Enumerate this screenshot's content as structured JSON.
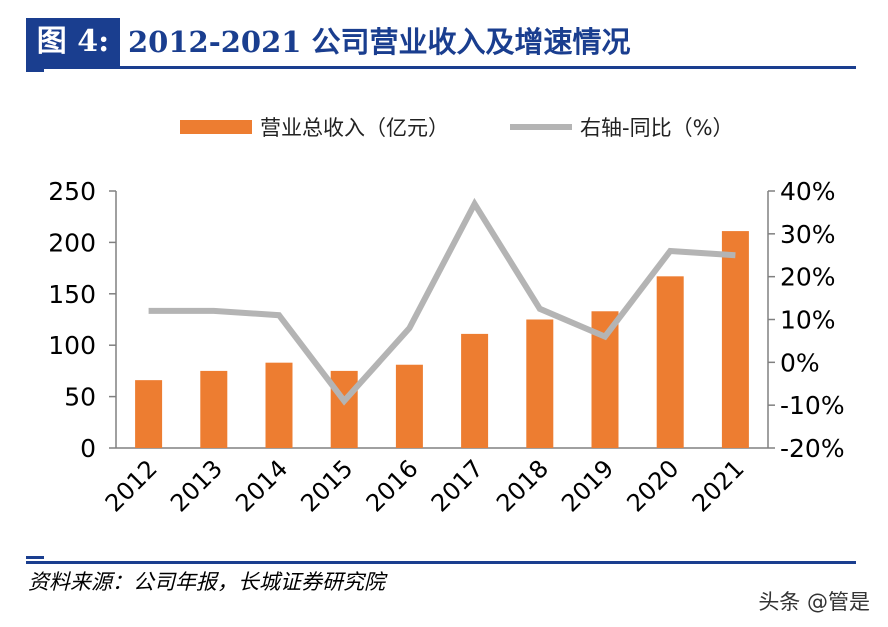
{
  "figure": {
    "tag": "图 4:",
    "title": "2012-2021 公司营业收入及增速情况",
    "source": "资料来源：公司年报，长城证券研究院",
    "watermark": "头条 @管是"
  },
  "colors": {
    "bar": "#ed7d31",
    "line": "#b4b4b4",
    "title": "#1a3e8f",
    "axis": "#808080"
  },
  "chart_data": {
    "type": "bar",
    "categories": [
      "2012",
      "2013",
      "2014",
      "2015",
      "2016",
      "2017",
      "2018",
      "2019",
      "2020",
      "2021"
    ],
    "series": [
      {
        "name": "营业总收入（亿元）",
        "type": "bar",
        "axis": "left",
        "values": [
          66,
          75,
          83,
          75,
          81,
          111,
          125,
          133,
          167,
          211
        ]
      },
      {
        "name": "右轴-同比（%）",
        "type": "line",
        "axis": "right",
        "values": [
          12,
          12,
          11,
          -9,
          8,
          37,
          12.5,
          6,
          26,
          25
        ]
      }
    ],
    "ylim": [
      0,
      250
    ],
    "y_ticks": [
      "0",
      "50",
      "100",
      "150",
      "200",
      "250"
    ],
    "y2lim": [
      -20,
      40
    ],
    "y2_ticks": [
      "-20%",
      "-10%",
      "0%",
      "10%",
      "20%",
      "30%",
      "40%"
    ],
    "legend_position": "top",
    "grid": false
  }
}
